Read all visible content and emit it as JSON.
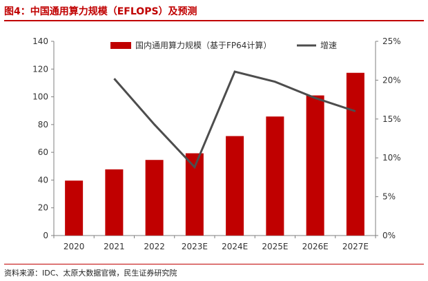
{
  "title": "图4：中国通用算力规模（EFLOPS）及预测",
  "source": "资料来源：IDC、太原大数据官微，民生证券研究院",
  "chart_data": {
    "type": "bar",
    "categories": [
      "2020",
      "2021",
      "2022",
      "2023E",
      "2024E",
      "2025E",
      "2026E",
      "2027E"
    ],
    "series": [
      {
        "name": "国内通用算力规模（基于FP64计算）",
        "type": "bar",
        "axis": "left",
        "color": "#c00000",
        "values": [
          39.6,
          47.7,
          54.5,
          59.3,
          71.7,
          85.8,
          101.0,
          117.3
        ]
      },
      {
        "name": "增速",
        "type": "line",
        "axis": "right",
        "color": "#4d4d4d",
        "values": [
          null,
          20.2,
          14.3,
          8.8,
          21.1,
          19.8,
          17.7,
          16.0
        ]
      }
    ],
    "yleft": {
      "min": 0,
      "max": 140,
      "step": 20,
      "ticks": [
        "0",
        "20",
        "40",
        "60",
        "80",
        "100",
        "120",
        "140"
      ]
    },
    "yright": {
      "min": 0,
      "max": 25,
      "step": 5,
      "ticks": [
        "0%",
        "5%",
        "10%",
        "15%",
        "20%",
        "25%"
      ]
    },
    "legend_position": "top-center",
    "grid": false
  }
}
